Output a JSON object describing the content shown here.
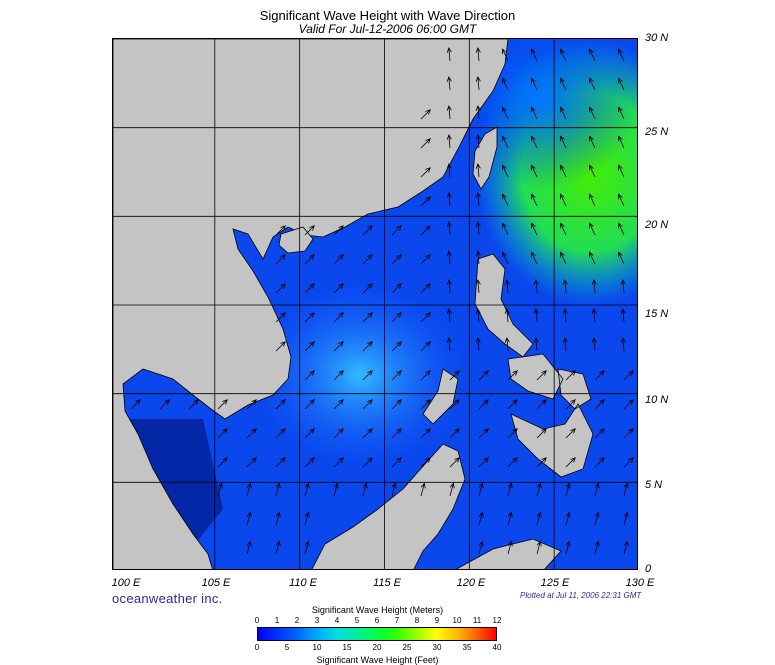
{
  "title": "Significant Wave Height with Wave Direction",
  "subtitle": "Valid For Jul-12-2006 06:00 GMT",
  "brand": "oceanweather inc.",
  "plotted": "Plotted at Jul 11, 2006 22:31 GMT",
  "map": {
    "lon_range": [
      99,
      130
    ],
    "lat_range": [
      0,
      30
    ],
    "lat_labels": [
      "30 N",
      "25 N",
      "20 N",
      "15 N",
      "10 N",
      "5 N",
      "0"
    ],
    "lon_labels": [
      "100 E",
      "105 E",
      "110 E",
      "115 E",
      "120 E",
      "125 E",
      "130 E"
    ],
    "gridlines_lon": [
      105,
      110,
      115,
      120,
      125
    ],
    "gridlines_lat": [
      5,
      10,
      15,
      20,
      25
    ],
    "land_color": "#c4c4c4",
    "wave_direction_note": "Arrows mostly point NE over the South China Sea; NW/N near Taiwan and the open Pacific."
  },
  "legend": {
    "title": "Significant Wave Height (Meters)",
    "footer": "Significant Wave Height (Feet)",
    "meters_ticks": [
      "0",
      "1",
      "2",
      "3",
      "4",
      "5",
      "6",
      "7",
      "8",
      "9",
      "10",
      "11",
      "12"
    ],
    "feet_ticks": [
      "0",
      "5",
      "10",
      "15",
      "20",
      "25",
      "30",
      "35",
      "40"
    ],
    "colors": [
      "#0000ff",
      "#0033ff",
      "#0066ff",
      "#00aaff",
      "#00dddd",
      "#00ee99",
      "#00ff44",
      "#33ff00",
      "#99ff00",
      "#ffff00",
      "#ffbb00",
      "#ff6600",
      "#ff0000"
    ]
  }
}
